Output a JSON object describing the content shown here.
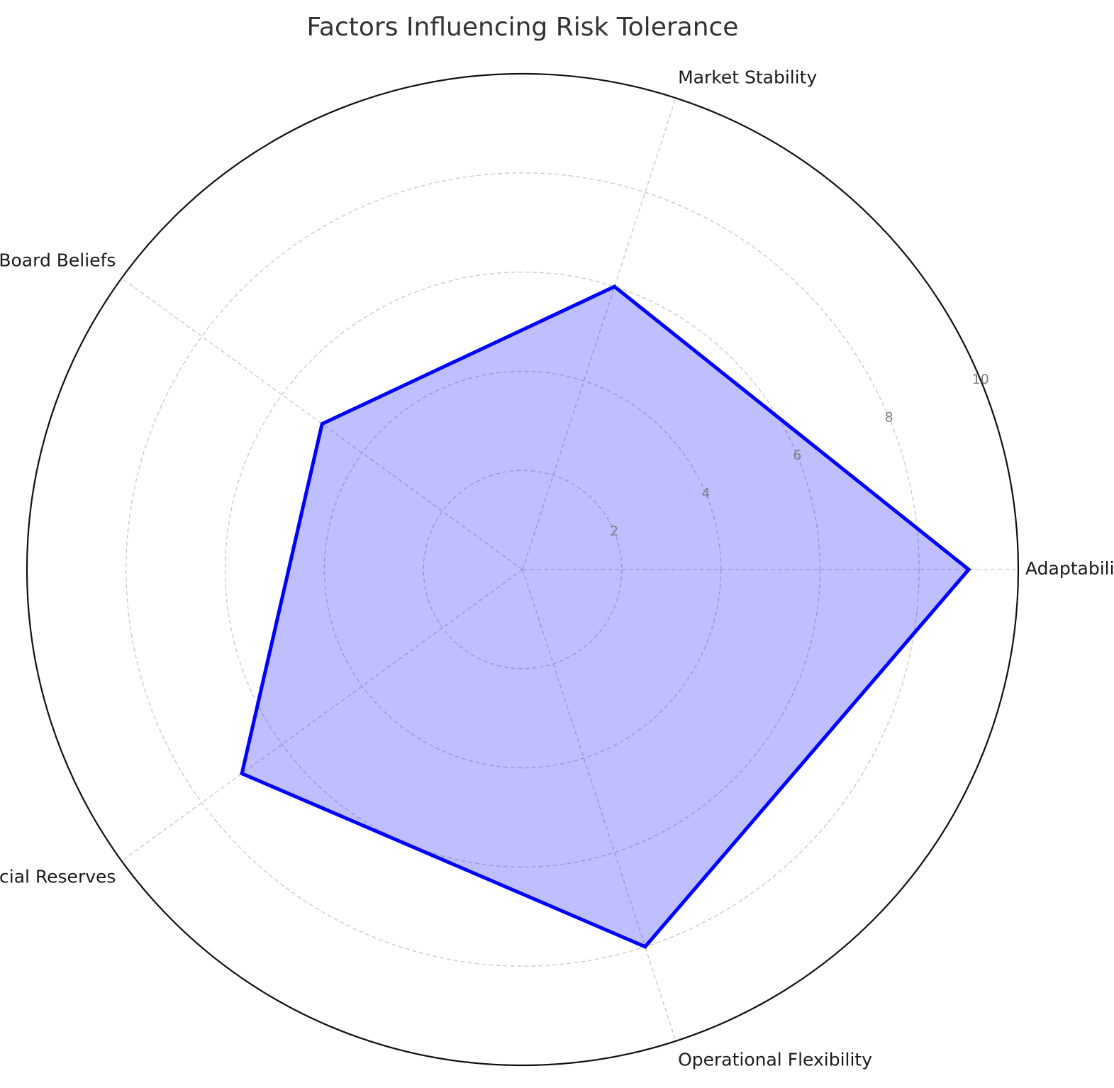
{
  "chart_data": {
    "type": "radar",
    "title": "Factors Influencing Risk Tolerance",
    "categories": [
      "Adaptability",
      "Market Stability",
      "Board Beliefs",
      "Financial Reserves",
      "Operational Flexibility"
    ],
    "series": [
      {
        "values": [
          9,
          6,
          5,
          7,
          8
        ]
      }
    ],
    "rlim": [
      0,
      10
    ],
    "rticks": [
      2,
      4,
      6,
      8,
      10
    ],
    "rtick_labels": [
      "2",
      "4",
      "6",
      "8",
      "10"
    ],
    "grid": true,
    "line_color": "#0000ff",
    "fill_color": "#0000ff",
    "fill_opacity": 0.25
  }
}
